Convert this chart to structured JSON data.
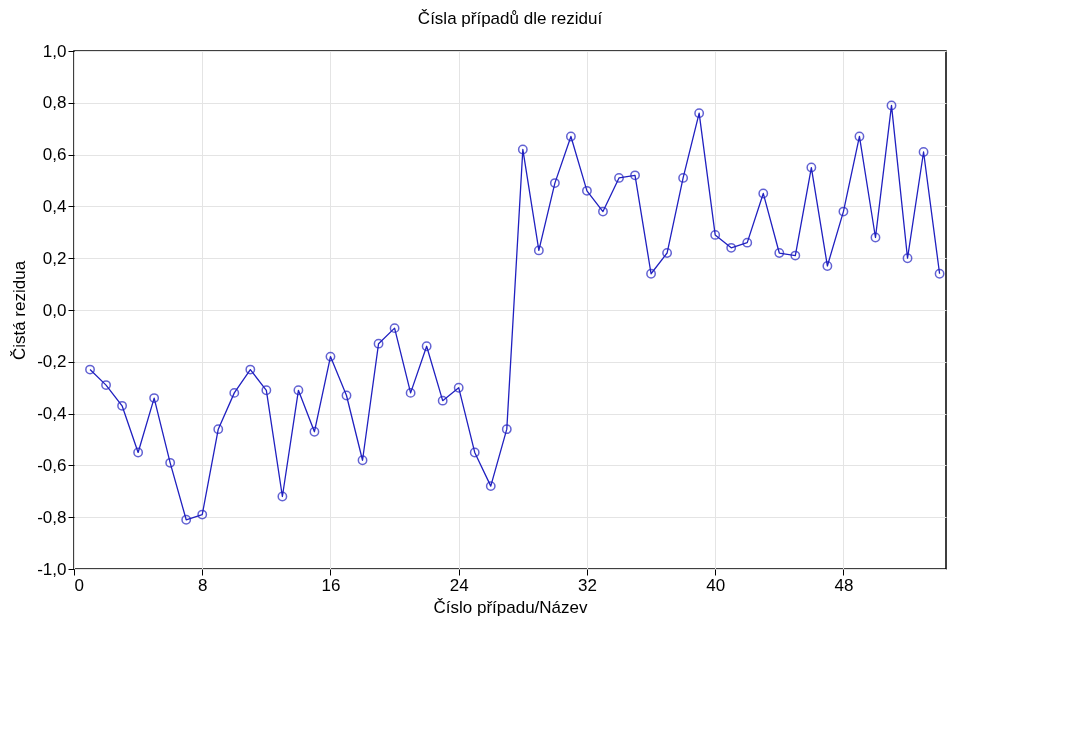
{
  "chart_data": {
    "type": "line",
    "title": "Čísla případů dle reziduí",
    "xlabel": "Číslo případu/Název",
    "ylabel": "Čistá rezidua",
    "x": [
      1,
      2,
      3,
      4,
      5,
      6,
      7,
      8,
      9,
      10,
      11,
      12,
      13,
      14,
      15,
      16,
      17,
      18,
      19,
      20,
      21,
      22,
      23,
      24,
      25,
      26,
      27,
      28,
      29,
      30,
      31,
      32,
      33,
      34,
      35,
      36,
      37,
      38,
      39,
      40,
      41,
      42,
      43,
      44,
      45,
      46,
      47,
      48,
      49,
      50,
      51,
      52,
      53,
      54
    ],
    "series": [
      {
        "color": "#2020c0",
        "values": [
          -0.23,
          -0.29,
          -0.37,
          -0.55,
          -0.34,
          -0.59,
          -0.81,
          -0.79,
          -0.46,
          -0.32,
          -0.23,
          -0.31,
          -0.72,
          -0.31,
          -0.47,
          -0.18,
          -0.33,
          -0.58,
          -0.13,
          -0.07,
          -0.32,
          -0.14,
          -0.35,
          -0.3,
          -0.55,
          -0.68,
          -0.46,
          0.62,
          0.23,
          0.49,
          0.67,
          0.46,
          0.38,
          0.51,
          0.52,
          0.14,
          0.22,
          0.51,
          0.76,
          0.29,
          0.24,
          0.26,
          0.45,
          0.22,
          0.21,
          0.55,
          0.17,
          0.38,
          0.67,
          0.28,
          0.79,
          0.2,
          0.61,
          0.14
        ]
      }
    ],
    "xlim": [
      0,
      54.4
    ],
    "xticks": [
      0,
      8,
      16,
      24,
      32,
      40,
      48
    ],
    "ylim": [
      -1.0,
      1.0
    ],
    "yticks": [
      {
        "value": -1.0,
        "label": "-1,0"
      },
      {
        "value": -0.8,
        "label": "-0,8"
      },
      {
        "value": -0.6,
        "label": "-0,6"
      },
      {
        "value": -0.4,
        "label": "-0,4"
      },
      {
        "value": -0.2,
        "label": "-0,2"
      },
      {
        "value": 0.0,
        "label": "0,0"
      },
      {
        "value": 0.2,
        "label": "0,2"
      },
      {
        "value": 0.4,
        "label": "0,4"
      },
      {
        "value": 0.6,
        "label": "0,6"
      },
      {
        "value": 0.8,
        "label": "0,8"
      },
      {
        "value": 1.0,
        "label": "1,0"
      }
    ],
    "grid": true,
    "marker": "circle",
    "line_style": "solid"
  }
}
